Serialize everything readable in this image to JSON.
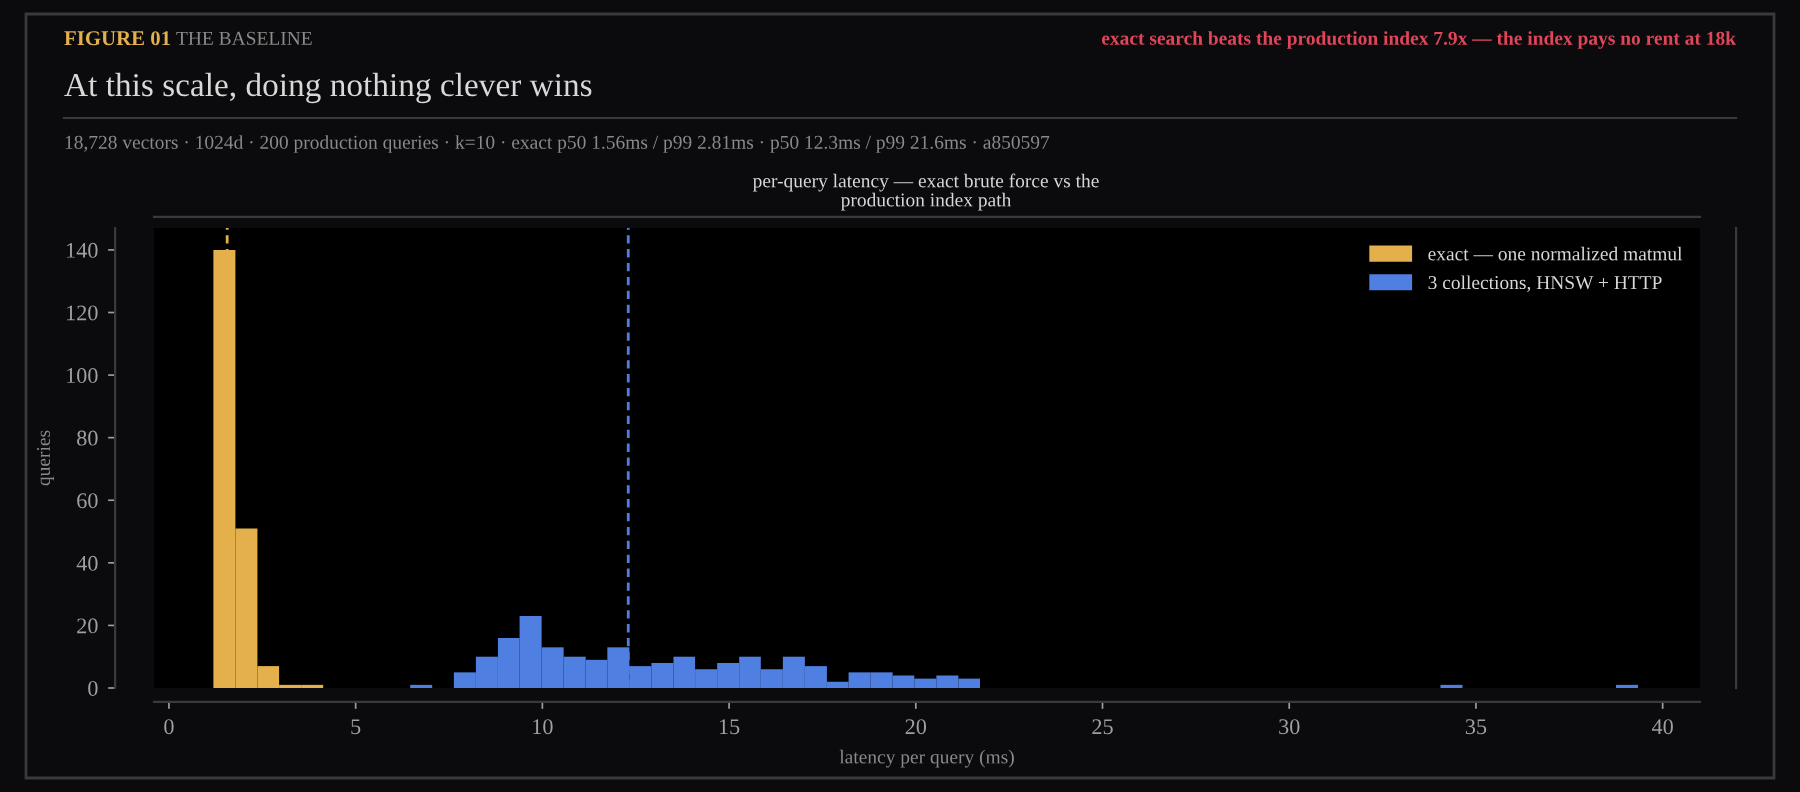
{
  "chart_data": {
    "type": "histogram",
    "title": "At this scale, doing nothing clever wins",
    "subtitle": "18,728 vectors · 1024d · 200 production queries · k=10 · exact p50 1.56ms / p99 2.81ms · p50 12.3ms / p99 21.6ms · a850597",
    "annotations": [
      "FIGURE 01",
      "THE BASELINE",
      "exact search beats the production index 7.9x — the index pays no rent at 18k",
      "per-query latency — exact brute force vs the\nproduction index path"
    ],
    "xlabel": "latency per query (ms)",
    "ylabel": "queries",
    "bins": [
      1.19,
      1.78,
      2.37,
      2.95,
      3.54,
      4.13,
      4.71,
      5.3,
      5.88,
      6.46,
      7.05,
      7.63,
      8.22,
      8.81,
      9.39,
      9.98,
      10.57,
      11.16,
      11.74,
      12.33,
      12.92,
      13.51,
      14.09,
      14.68,
      15.27,
      15.85,
      16.44,
      17.03,
      17.62,
      18.2,
      18.79,
      19.38,
      19.96,
      20.55,
      21.14,
      21.72,
      22.31,
      22.9,
      23.49,
      24.07,
      24.66,
      25.25,
      25.83,
      26.42,
      27.01,
      27.6,
      28.18,
      28.77,
      29.36,
      29.94,
      30.53,
      31.12,
      31.7,
      32.29,
      32.88,
      33.47,
      34.05,
      34.64,
      35.23,
      35.81,
      36.4,
      36.99,
      37.58,
      38.16,
      38.75,
      39.34
    ],
    "series": [
      {
        "name": "exact — one normalized matmul",
        "color": "#e3b04b",
        "values": [
          140,
          51,
          7,
          1,
          1,
          0,
          0,
          0,
          0,
          0,
          0,
          0,
          0,
          0,
          0,
          0,
          0,
          0,
          0,
          0,
          0,
          0,
          0,
          0,
          0,
          0,
          0,
          0,
          0,
          0,
          0,
          0,
          0,
          0,
          0,
          0,
          0,
          0,
          0,
          0,
          0,
          0,
          0,
          0,
          0,
          0,
          0,
          0,
          0,
          0,
          0,
          0,
          0,
          0,
          0,
          0,
          0,
          0,
          0,
          0,
          0,
          0,
          0,
          0,
          0
        ]
      },
      {
        "name": "3 collections, HNSW + HTTP",
        "color": "#4f7fe0",
        "values": [
          0,
          0,
          0,
          0,
          0,
          0,
          0,
          0,
          0,
          1,
          0,
          5,
          10,
          16,
          23,
          13,
          10,
          9,
          13,
          7,
          8,
          10,
          6,
          8,
          10,
          6,
          10,
          7,
          2,
          5,
          5,
          4,
          3,
          4,
          3,
          0,
          0,
          0,
          0,
          0,
          0,
          0,
          0,
          0,
          0,
          0,
          0,
          0,
          0,
          0,
          0,
          0,
          0,
          0,
          0,
          0,
          1,
          0,
          0,
          0,
          0,
          0,
          0,
          0,
          1
        ]
      }
    ],
    "xlim": [
      -0.4,
      41
    ],
    "xticks": [
      0,
      5,
      10,
      15,
      20,
      25,
      30,
      35,
      40
    ],
    "ylim": [
      0,
      147
    ],
    "yticks": [
      0,
      20,
      40,
      60,
      80,
      100,
      120,
      140
    ],
    "ref_lines": [
      {
        "axis": "x",
        "value": 1.56,
        "color": "#e3b04b",
        "line_style": "dashed"
      },
      {
        "axis": "x",
        "value": 12.3,
        "color": "#4f7fe0",
        "line_style": "dashed"
      }
    ],
    "legend": "top right"
  }
}
